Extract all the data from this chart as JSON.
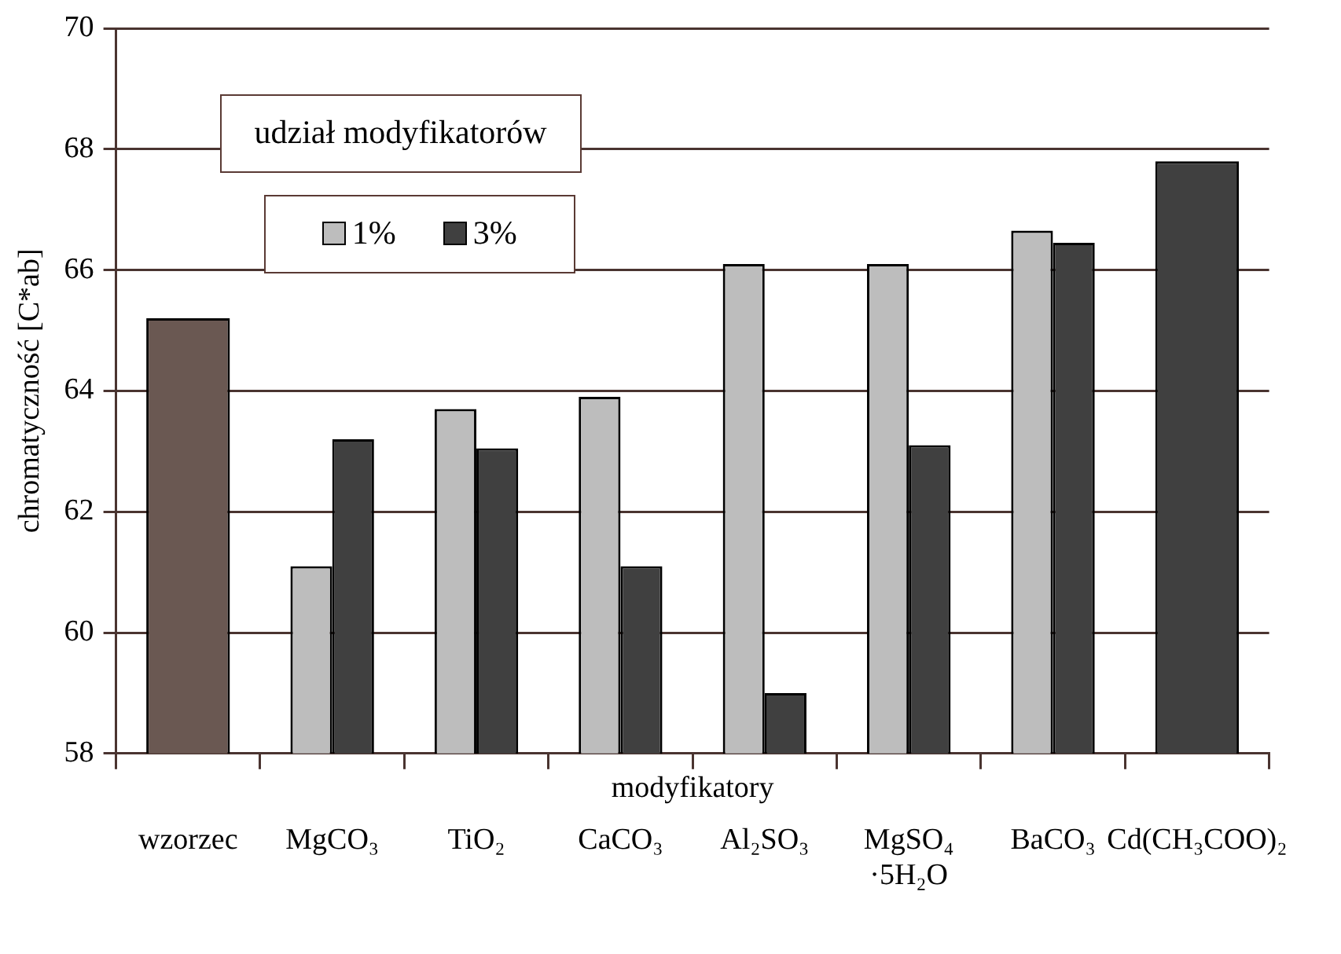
{
  "chart_data": {
    "type": "bar",
    "xlabel": "modyfikatory",
    "ylabel": "chromatyczność [C*ab]",
    "legend_title": "udział modyfikatorów",
    "categories": [
      "wzorzec",
      "MgCO₃",
      "TiO₂",
      "CaCO₃",
      "Al₂SO₃",
      "MgSO₄ ·5H₂O",
      "BaCO₃",
      "Cd(CH₃COO)₂"
    ],
    "series": [
      {
        "color": "#6a5852",
        "values": [
          65.2,
          null,
          null,
          null,
          null,
          null,
          null,
          null
        ]
      },
      {
        "name": "1%",
        "color": "#bdbdbd",
        "values": [
          null,
          61.1,
          63.7,
          63.9,
          66.1,
          66.1,
          66.65,
          null
        ]
      },
      {
        "name": "3%",
        "color": "#404040",
        "values": [
          null,
          63.2,
          63.05,
          61.1,
          59.0,
          63.1,
          66.45,
          67.8
        ]
      }
    ],
    "ylim": [
      58,
      70
    ],
    "yticks": [
      58,
      60,
      62,
      64,
      66,
      68,
      70
    ],
    "grid": "y",
    "legend": "top"
  }
}
